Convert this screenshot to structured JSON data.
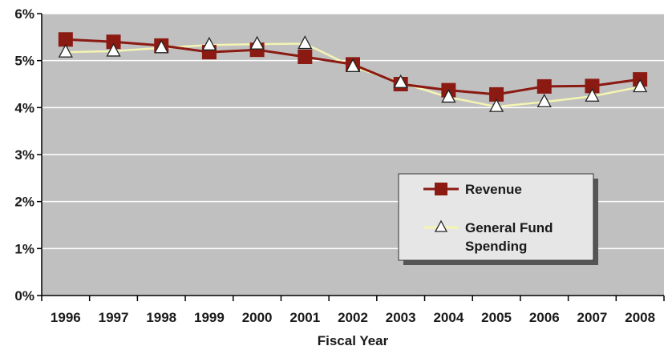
{
  "chart_data": {
    "type": "line",
    "title": "",
    "xlabel": "Fiscal Year",
    "ylabel": "",
    "categories": [
      "1996",
      "1997",
      "1998",
      "1999",
      "2000",
      "2001",
      "2002",
      "2003",
      "2004",
      "2005",
      "2006",
      "2007",
      "2008"
    ],
    "y_ticks": [
      "0%",
      "1%",
      "2%",
      "3%",
      "4%",
      "5%",
      "6%"
    ],
    "ylim": [
      0,
      6
    ],
    "grid": true,
    "legend_position": "bottom-right",
    "series": [
      {
        "name": "Revenue",
        "marker": "square",
        "color": "#8b1a12",
        "values": [
          5.45,
          5.4,
          5.32,
          5.18,
          5.23,
          5.08,
          4.92,
          4.5,
          4.37,
          4.28,
          4.45,
          4.46,
          4.6
        ]
      },
      {
        "name": "General Fund Spending",
        "legend_lines": [
          "General Fund",
          "Spending"
        ],
        "marker": "triangle",
        "color": "#f4f4b4",
        "values": [
          5.18,
          5.2,
          5.27,
          5.33,
          5.35,
          5.36,
          4.87,
          4.53,
          4.22,
          4.02,
          4.12,
          4.24,
          4.44
        ]
      }
    ],
    "plot_background": "#c0c0c0",
    "legend_background": "#e6e6e6"
  }
}
